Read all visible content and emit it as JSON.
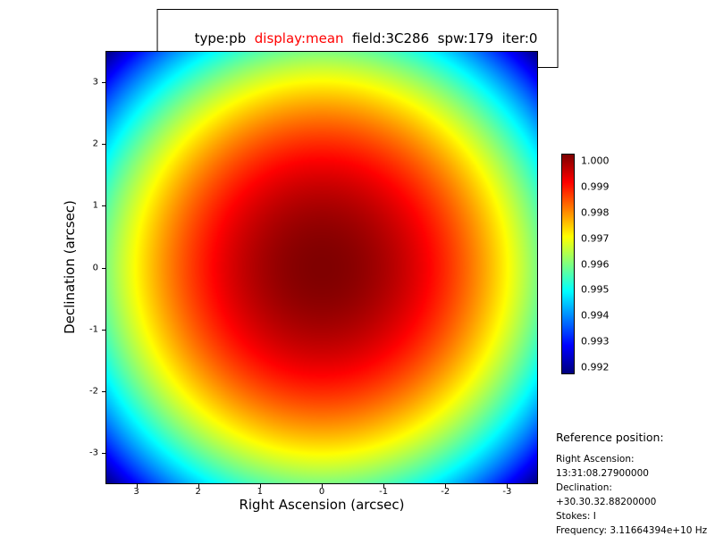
{
  "title": {
    "segments": [
      {
        "text": "type:pb  ",
        "color": "#000000"
      },
      {
        "text": "display:mean",
        "color": "#ff0000"
      },
      {
        "text": "  field:3C286  spw:179  iter:0",
        "color": "#000000"
      }
    ]
  },
  "chart_data": {
    "type": "heatmap",
    "title": "type:pb display:mean field:3C286 spw:179 iter:0",
    "xlabel": "Right Ascension (arcsec)",
    "ylabel": "Declination (arcsec)",
    "x_ticks": [
      3,
      2,
      1,
      0,
      -1,
      -2,
      -3
    ],
    "y_ticks": [
      3,
      2,
      1,
      0,
      -1,
      -2,
      -3
    ],
    "x_range": [
      3.5,
      -3.5
    ],
    "y_range": [
      -3.5,
      3.5
    ],
    "colormap": "jet",
    "vmin": 0.99155,
    "vmax": 1.0,
    "beam_model": {
      "type": "gaussian",
      "peak": 1.0,
      "coeff": 0.0003464
    },
    "colorbar_ticks": [
      "1.000",
      "0.999",
      "0.998",
      "0.997",
      "0.996",
      "0.995",
      "0.994",
      "0.993",
      "0.992"
    ],
    "legend_position": "right-colorbar",
    "grid": false
  },
  "reference": {
    "heading": "Reference position:",
    "lines": [
      "Right Ascension: 13:31:08.27900000",
      "Declination: +30.30.32.88200000",
      "Stokes: I",
      "Frequency: 3.11664394e+10 Hz"
    ]
  }
}
